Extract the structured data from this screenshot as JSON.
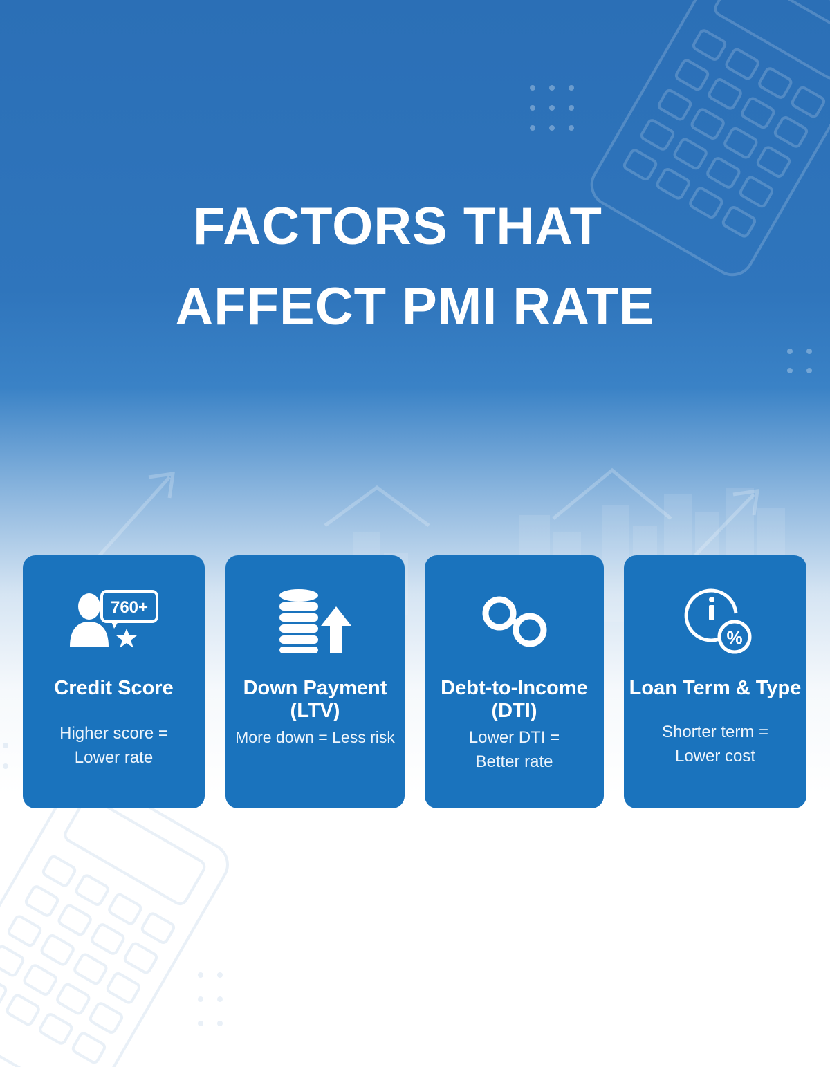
{
  "title_lines": [
    "FACTORS THAT",
    "AFFECT PMI RATE"
  ],
  "colors": {
    "card": "#1a73bd",
    "banner": "#2b6fb6",
    "text": "#ffffff"
  },
  "cards": [
    {
      "icon": "person-score-star-icon",
      "badge": "760+",
      "title": "Credit Score",
      "desc": "Higher score =\nLower rate"
    },
    {
      "icon": "coin-stack-arrow-up-icon",
      "title": "Down Payment\n(LTV)",
      "desc": "More down = Less risk"
    },
    {
      "icon": "chain-link-icon",
      "title": "Debt-to-Income\n(DTI)",
      "desc": "Lower DTI =\nBetter rate"
    },
    {
      "icon": "clock-percent-icon",
      "title": "Loan Term & Type",
      "desc": "Shorter term =\nLower cost"
    }
  ]
}
